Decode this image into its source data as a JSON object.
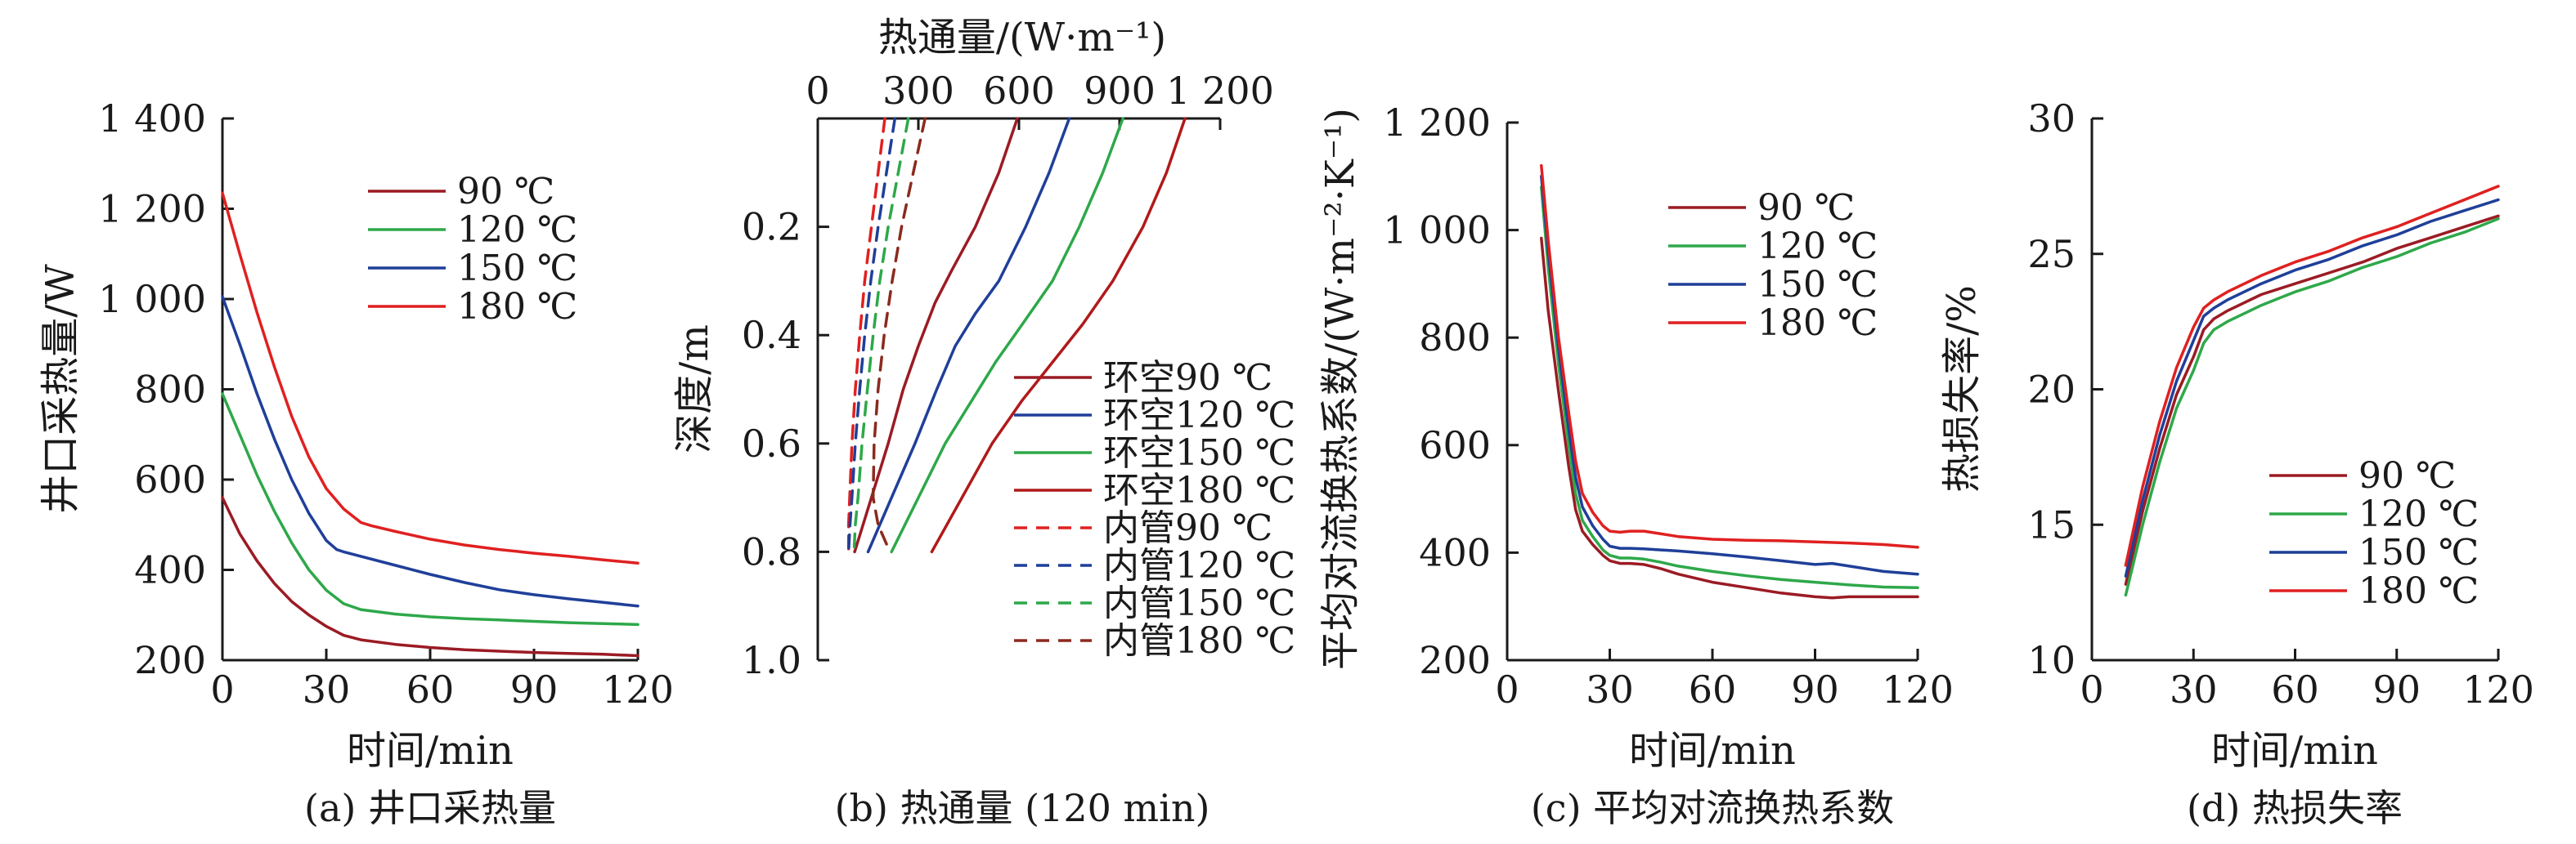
{
  "chart_data": [
    {
      "id": "a",
      "type": "line",
      "caption": "(a) 井口采热量",
      "xlabel": "时间/min",
      "ylabel": "井口采热量/W",
      "xlim": [
        0,
        120
      ],
      "ylim": [
        200,
        1400
      ],
      "xticks": [
        0,
        30,
        60,
        90,
        120
      ],
      "xtick_labels": [
        "0",
        "30",
        "60",
        "90",
        "120"
      ],
      "yticks": [
        200,
        400,
        600,
        800,
        1000,
        1200,
        1400
      ],
      "ytick_labels": [
        "200",
        "400",
        "600",
        "800",
        "1 000",
        "1 200",
        "1 400"
      ],
      "legend_position": "top-right",
      "series": [
        {
          "name": "90 ℃",
          "color": "#9b1b24",
          "x": [
            0,
            5,
            10,
            15,
            20,
            25,
            30,
            35,
            40,
            50,
            60,
            70,
            80,
            90,
            100,
            110,
            120
          ],
          "y": [
            560,
            480,
            420,
            370,
            330,
            300,
            275,
            255,
            245,
            235,
            228,
            223,
            220,
            217,
            215,
            213,
            210
          ]
        },
        {
          "name": "120 ℃",
          "color": "#2ea84a",
          "x": [
            0,
            5,
            10,
            15,
            20,
            25,
            30,
            35,
            40,
            50,
            60,
            70,
            80,
            90,
            100,
            110,
            120
          ],
          "y": [
            790,
            700,
            610,
            530,
            460,
            400,
            355,
            325,
            312,
            302,
            296,
            292,
            289,
            286,
            283,
            281,
            279
          ]
        },
        {
          "name": "150 ℃",
          "color": "#1f3f99",
          "x": [
            0,
            5,
            10,
            15,
            20,
            25,
            30,
            33,
            35,
            40,
            50,
            60,
            70,
            80,
            90,
            100,
            110,
            120
          ],
          "y": [
            1005,
            900,
            790,
            690,
            600,
            525,
            465,
            445,
            440,
            430,
            410,
            390,
            372,
            356,
            345,
            336,
            328,
            320
          ]
        },
        {
          "name": "180 ℃",
          "color": "#e02020",
          "x": [
            0,
            5,
            10,
            15,
            20,
            25,
            30,
            35,
            40,
            43,
            50,
            60,
            70,
            80,
            90,
            100,
            110,
            120
          ],
          "y": [
            1235,
            1100,
            970,
            850,
            740,
            650,
            580,
            535,
            505,
            498,
            485,
            468,
            455,
            445,
            437,
            430,
            422,
            415
          ]
        }
      ]
    },
    {
      "id": "b",
      "type": "line",
      "caption": "(b) 热通量 (120 min)",
      "xlabel": "热通量/(W·m⁻¹)",
      "ylabel": "深度/m",
      "xlim": [
        0,
        1200
      ],
      "ylim": [
        0,
        1.0
      ],
      "xticks": [
        0,
        300,
        600,
        900,
        1200
      ],
      "xtick_labels": [
        "0",
        "300",
        "600",
        "900",
        "1 200"
      ],
      "yticks": [
        0.2,
        0.4,
        0.6,
        0.8,
        1.0
      ],
      "ytick_labels": [
        "0.2",
        "0.4",
        "0.6",
        "0.8",
        "1.0"
      ],
      "legend_position": "bottom-right",
      "series": [
        {
          "name": "环空90 ℃",
          "color": "#9b1b24",
          "dash": false,
          "x": [
            595,
            540,
            470,
            400,
            350,
            300,
            255,
            210,
            160,
            110
          ],
          "y": [
            0,
            0.1,
            0.2,
            0.28,
            0.34,
            0.42,
            0.5,
            0.6,
            0.7,
            0.8
          ]
        },
        {
          "name": "环空120 ℃",
          "color": "#1f3f99",
          "x": [
            750,
            690,
            620,
            540,
            470,
            410,
            355,
            290,
            220,
            150
          ],
          "y": [
            0,
            0.1,
            0.2,
            0.3,
            0.36,
            0.42,
            0.5,
            0.6,
            0.7,
            0.8
          ]
        },
        {
          "name": "环空150 ℃",
          "color": "#2ea84a",
          "x": [
            910,
            850,
            780,
            700,
            610,
            530,
            460,
            380,
            300,
            220
          ],
          "y": [
            0,
            0.1,
            0.2,
            0.3,
            0.38,
            0.45,
            0.52,
            0.6,
            0.7,
            0.8
          ]
        },
        {
          "name": "环空180 ℃",
          "color": "#b01a1a",
          "x": [
            1095,
            1040,
            970,
            880,
            790,
            700,
            610,
            520,
            430,
            340
          ],
          "y": [
            0,
            0.1,
            0.2,
            0.3,
            0.38,
            0.45,
            0.52,
            0.6,
            0.7,
            0.8
          ]
        },
        {
          "name": "内管90 ℃",
          "color": "#e02020",
          "x": [
            200,
            180,
            160,
            140,
            125,
            112,
            102,
            95,
            92,
            92
          ],
          "y": [
            0,
            0.1,
            0.2,
            0.3,
            0.4,
            0.5,
            0.6,
            0.7,
            0.75,
            0.8
          ]
        },
        {
          "name": "内管120 ℃",
          "color": "#1f3f99",
          "x": [
            230,
            205,
            180,
            158,
            140,
            125,
            112,
            102,
            96,
            92
          ],
          "y": [
            0,
            0.1,
            0.2,
            0.3,
            0.4,
            0.5,
            0.6,
            0.7,
            0.75,
            0.8
          ]
        },
        {
          "name": "内管150 ℃",
          "color": "#2ea84a",
          "x": [
            270,
            240,
            210,
            185,
            165,
            148,
            132,
            120,
            112,
            108
          ],
          "y": [
            0,
            0.1,
            0.2,
            0.3,
            0.4,
            0.5,
            0.6,
            0.7,
            0.75,
            0.8
          ]
        },
        {
          "name": "内管180 ℃",
          "color": "#8b2a1e",
          "x": [
            320,
            285,
            250,
            222,
            198,
            180,
            168,
            165,
            180,
            215
          ],
          "y": [
            0,
            0.1,
            0.2,
            0.3,
            0.4,
            0.5,
            0.6,
            0.7,
            0.75,
            0.8
          ]
        }
      ]
    },
    {
      "id": "c",
      "type": "line",
      "caption": "(c) 平均对流换热系数",
      "xlabel": "时间/min",
      "ylabel": "平均对流换热系数/(W·m⁻²·K⁻¹)",
      "xlim": [
        0,
        120
      ],
      "ylim": [
        200,
        1200
      ],
      "xticks": [
        0,
        30,
        60,
        90,
        120
      ],
      "xtick_labels": [
        "0",
        "30",
        "60",
        "90",
        "120"
      ],
      "yticks": [
        200,
        400,
        600,
        800,
        1000,
        1200
      ],
      "ytick_labels": [
        "200",
        "400",
        "600",
        "800",
        "1 000",
        "1 200"
      ],
      "legend_position": "top-right",
      "series": [
        {
          "name": "90 ℃",
          "color": "#9b1b24",
          "x": [
            10,
            12,
            15,
            18,
            20,
            22,
            25,
            28,
            30,
            33,
            36,
            40,
            45,
            50,
            60,
            70,
            80,
            90,
            95,
            100,
            110,
            120
          ],
          "y": [
            985,
            850,
            700,
            560,
            480,
            440,
            415,
            395,
            385,
            380,
            380,
            378,
            370,
            360,
            345,
            335,
            325,
            318,
            316,
            318,
            318,
            318
          ]
        },
        {
          "name": "120 ℃",
          "color": "#2ea84a",
          "x": [
            10,
            12,
            15,
            18,
            20,
            22,
            25,
            28,
            30,
            33,
            36,
            40,
            45,
            50,
            60,
            70,
            80,
            90,
            100,
            110,
            120
          ],
          "y": [
            1080,
            930,
            750,
            600,
            510,
            460,
            430,
            405,
            395,
            390,
            390,
            388,
            382,
            375,
            365,
            357,
            350,
            345,
            340,
            336,
            335
          ]
        },
        {
          "name": "150 ℃",
          "color": "#1f3f99",
          "x": [
            10,
            12,
            15,
            18,
            20,
            22,
            25,
            28,
            30,
            33,
            36,
            40,
            45,
            50,
            60,
            70,
            80,
            90,
            95,
            100,
            110,
            120
          ],
          "y": [
            1100,
            960,
            780,
            630,
            540,
            485,
            450,
            425,
            412,
            408,
            408,
            407,
            405,
            403,
            398,
            392,
            385,
            378,
            380,
            375,
            365,
            360
          ]
        },
        {
          "name": "180 ℃",
          "color": "#e02020",
          "x": [
            10,
            12,
            15,
            18,
            20,
            22,
            25,
            28,
            30,
            33,
            36,
            40,
            45,
            50,
            60,
            70,
            80,
            90,
            100,
            110,
            120
          ],
          "y": [
            1120,
            980,
            800,
            660,
            570,
            510,
            475,
            450,
            440,
            438,
            440,
            440,
            435,
            430,
            425,
            423,
            422,
            420,
            418,
            415,
            410
          ]
        }
      ]
    },
    {
      "id": "d",
      "type": "line",
      "caption": "(d) 热损失率",
      "xlabel": "时间/min",
      "ylabel": "热损失率/%",
      "xlim": [
        0,
        120
      ],
      "ylim": [
        10,
        30
      ],
      "xticks": [
        0,
        30,
        60,
        90,
        120
      ],
      "xtick_labels": [
        "0",
        "30",
        "60",
        "90",
        "120"
      ],
      "yticks": [
        10,
        15,
        20,
        25,
        30
      ],
      "ytick_labels": [
        "10",
        "15",
        "20",
        "25",
        "30"
      ],
      "legend_position": "bottom-right",
      "series": [
        {
          "name": "90 ℃",
          "color": "#9b1b24",
          "x": [
            10,
            15,
            20,
            25,
            30,
            33,
            36,
            40,
            50,
            60,
            70,
            80,
            90,
            100,
            110,
            120
          ],
          "y": [
            12.8,
            15.5,
            17.8,
            19.8,
            21.2,
            22.2,
            22.6,
            22.9,
            23.5,
            23.9,
            24.3,
            24.7,
            25.2,
            25.6,
            26.0,
            26.4
          ]
        },
        {
          "name": "120 ℃",
          "color": "#2ea84a",
          "x": [
            10,
            15,
            20,
            25,
            30,
            33,
            36,
            40,
            50,
            60,
            70,
            80,
            90,
            100,
            110,
            120
          ],
          "y": [
            12.4,
            15.0,
            17.3,
            19.3,
            20.7,
            21.7,
            22.2,
            22.5,
            23.1,
            23.6,
            24.0,
            24.5,
            24.9,
            25.4,
            25.8,
            26.3
          ]
        },
        {
          "name": "150 ℃",
          "color": "#1f3f99",
          "x": [
            10,
            15,
            20,
            25,
            30,
            33,
            36,
            40,
            50,
            60,
            70,
            80,
            90,
            100,
            110,
            120
          ],
          "y": [
            13.1,
            15.9,
            18.3,
            20.3,
            21.8,
            22.7,
            23.0,
            23.3,
            23.9,
            24.4,
            24.8,
            25.3,
            25.7,
            26.2,
            26.6,
            27.0
          ]
        },
        {
          "name": "180 ℃",
          "color": "#e02020",
          "x": [
            10,
            15,
            20,
            25,
            30,
            33,
            36,
            40,
            50,
            60,
            70,
            80,
            90,
            100,
            110,
            120
          ],
          "y": [
            13.5,
            16.4,
            18.8,
            20.8,
            22.3,
            23.0,
            23.3,
            23.6,
            24.2,
            24.7,
            25.1,
            25.6,
            26.0,
            26.5,
            27.0,
            27.5
          ]
        }
      ]
    }
  ]
}
